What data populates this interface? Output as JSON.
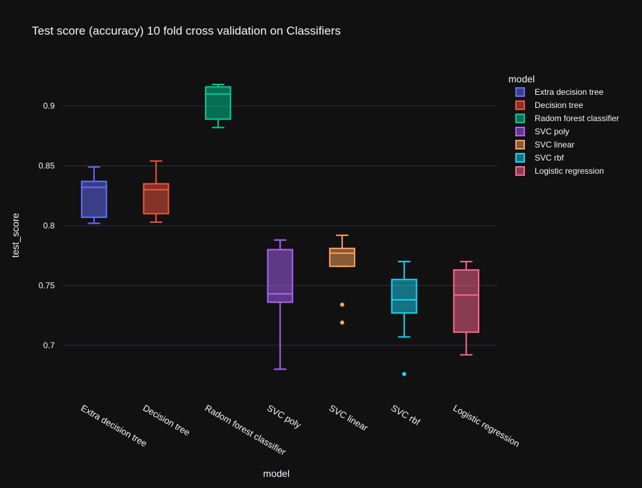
{
  "chart_data": {
    "type": "box",
    "title": "Test score (accuracy) 10 fold cross validation on Classifiers",
    "xlabel": "model",
    "ylabel": "test_score",
    "ylim": [
      0.66,
      0.94
    ],
    "yticks": [
      0.7,
      0.75,
      0.8,
      0.85,
      0.9
    ],
    "ytick_labels": [
      "0.7",
      "0.75",
      "0.8",
      "0.85",
      "0.9"
    ],
    "grid": true,
    "legend": {
      "title": "model",
      "placement": "top-right"
    },
    "categories": [
      "Extra decision tree",
      "Decision tree",
      "Radom forest classifier",
      "SVC poly",
      "SVC linear",
      "SVC rbf",
      "Logistic regression"
    ],
    "series": [
      {
        "name": "Extra decision tree",
        "color": "#636efa",
        "min": 0.802,
        "q1": 0.807,
        "median": 0.832,
        "q3": 0.837,
        "max": 0.849,
        "outliers": []
      },
      {
        "name": "Decision tree",
        "color": "#ef553b",
        "min": 0.803,
        "q1": 0.81,
        "median": 0.83,
        "q3": 0.835,
        "max": 0.854,
        "outliers": []
      },
      {
        "name": "Radom forest classifier",
        "color": "#00cc96",
        "min": 0.882,
        "q1": 0.889,
        "median": 0.91,
        "q3": 0.916,
        "max": 0.918,
        "outliers": []
      },
      {
        "name": "SVC poly",
        "color": "#ab63fa",
        "min": 0.68,
        "q1": 0.736,
        "median": 0.743,
        "q3": 0.78,
        "max": 0.788,
        "outliers": []
      },
      {
        "name": "SVC linear",
        "color": "#ffa15a",
        "min": 0.766,
        "q1": 0.766,
        "median": 0.777,
        "q3": 0.781,
        "max": 0.792,
        "outliers": [
          0.734,
          0.719
        ]
      },
      {
        "name": "SVC rbf",
        "color": "#19d3f3",
        "min": 0.707,
        "q1": 0.727,
        "median": 0.738,
        "q3": 0.755,
        "max": 0.77,
        "outliers": [
          0.676
        ]
      },
      {
        "name": "Logistic regression",
        "color": "#ff6692",
        "min": 0.692,
        "q1": 0.711,
        "median": 0.742,
        "q3": 0.763,
        "max": 0.77,
        "outliers": []
      }
    ]
  }
}
